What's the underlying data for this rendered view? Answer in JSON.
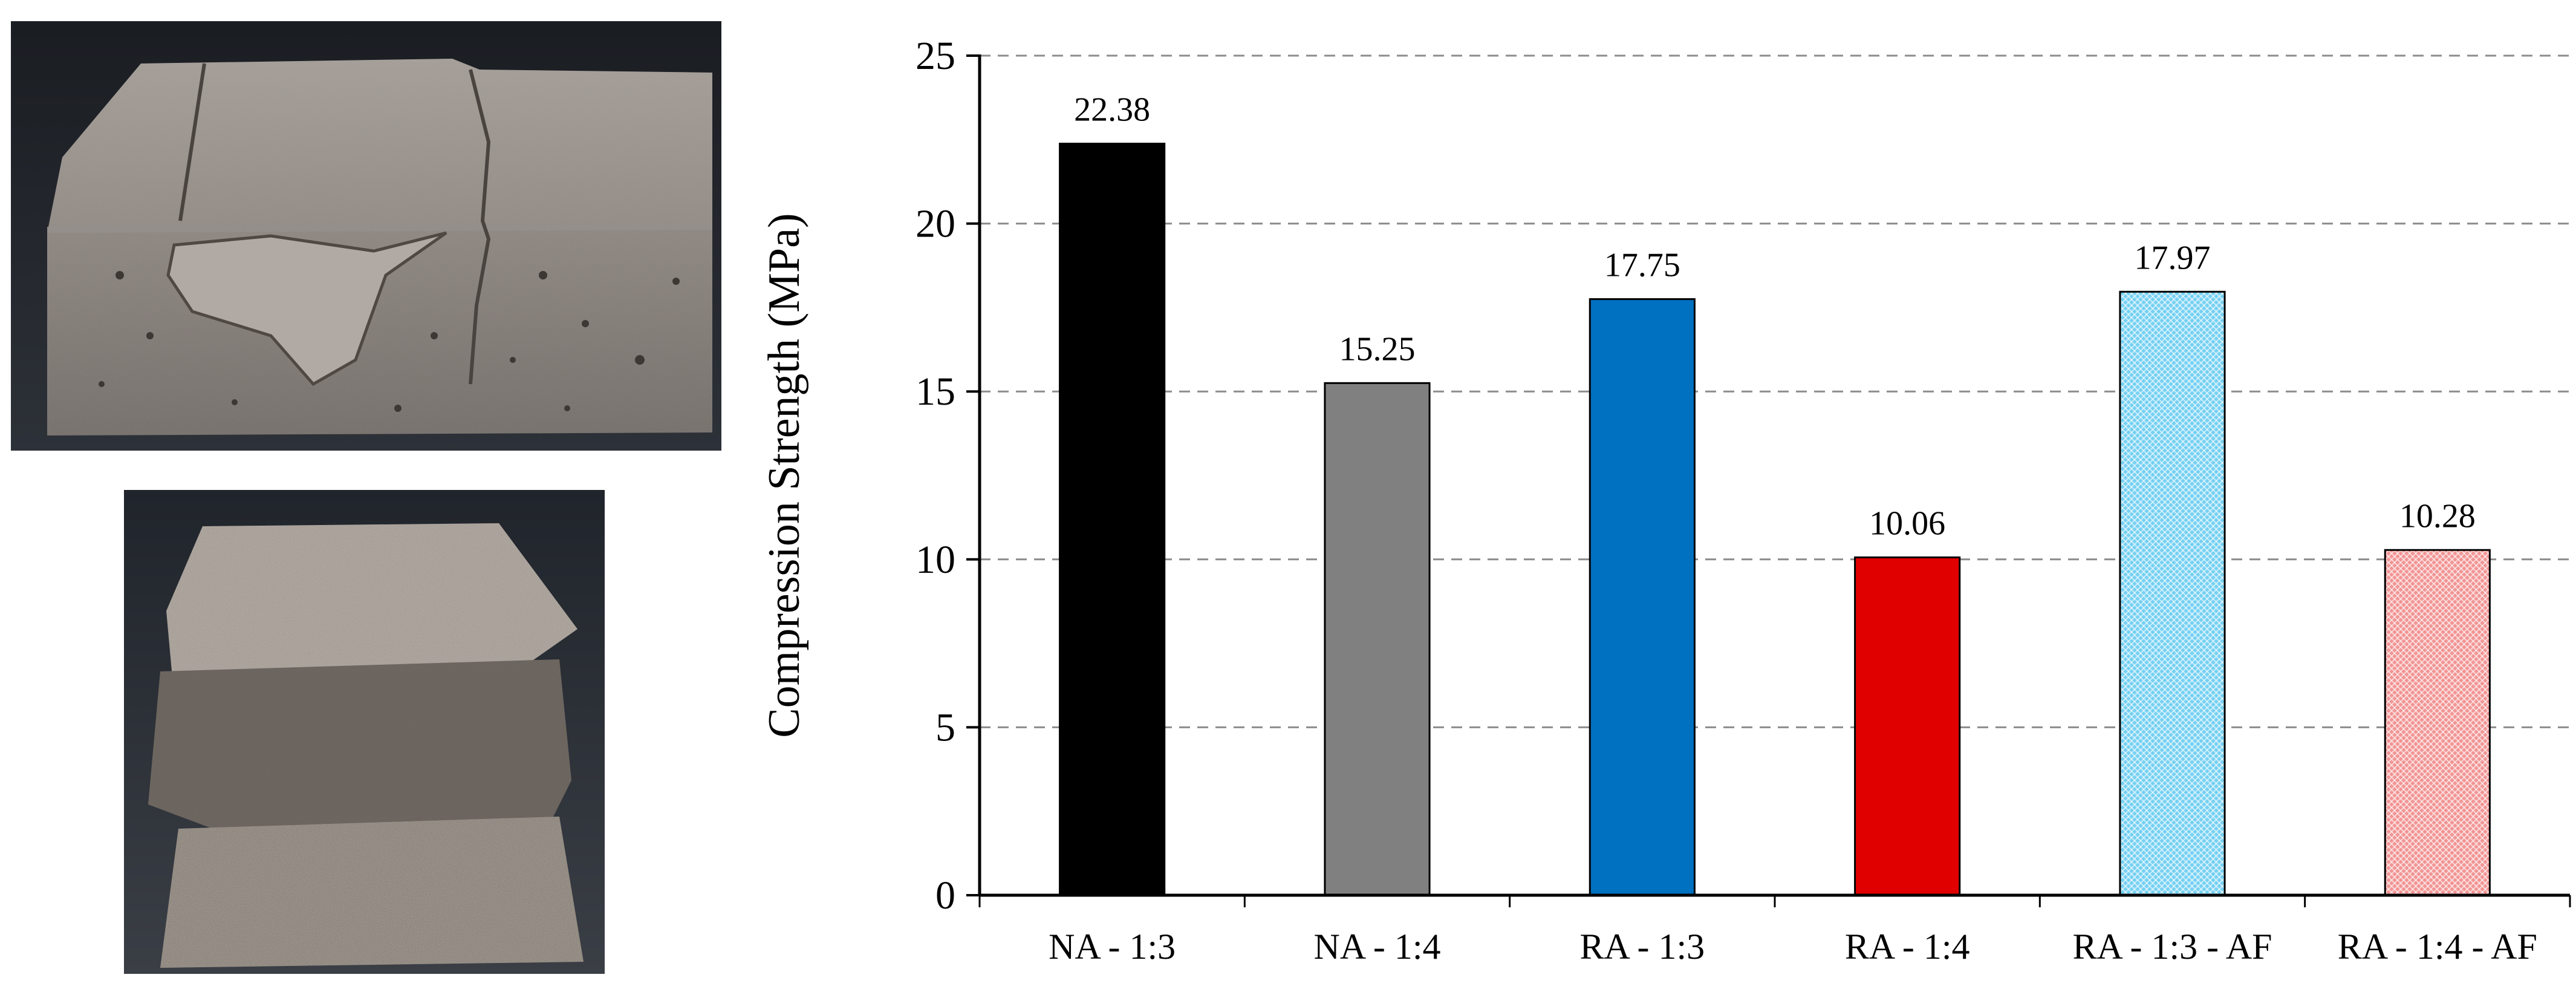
{
  "photos": {
    "top": {
      "subject": "cracked-mortar-prism-photo"
    },
    "bottom": {
      "subject": "crushed-mortar-prism-photo"
    }
  },
  "chart_data": {
    "type": "bar",
    "categories": [
      "NA - 1:3",
      "NA - 1:4",
      "RA - 1:3",
      "RA - 1:4",
      "RA - 1:3 - AF",
      "RA - 1:4 - AF"
    ],
    "values": [
      22.38,
      15.25,
      17.75,
      10.06,
      17.97,
      10.28
    ],
    "value_labels": [
      "22.38",
      "15.25",
      "17.75",
      "10.06",
      "17.97",
      "10.28"
    ],
    "bar_colors": [
      "#000000",
      "#808080",
      "#0070C0",
      "#E00000",
      "#5BC8F0",
      "#F08080"
    ],
    "bar_patterns": [
      "solid",
      "solid",
      "solid",
      "solid",
      "crosshatch",
      "crosshatch"
    ],
    "ylabel": "Compression Strength (MPa)",
    "xlabel": "",
    "ylim": [
      0,
      25
    ],
    "yticks": [
      0,
      5,
      10,
      15,
      20,
      25
    ],
    "ytick_labels": [
      "0",
      "5",
      "10",
      "15",
      "20",
      "25"
    ],
    "grid": "horizontal dashed"
  }
}
